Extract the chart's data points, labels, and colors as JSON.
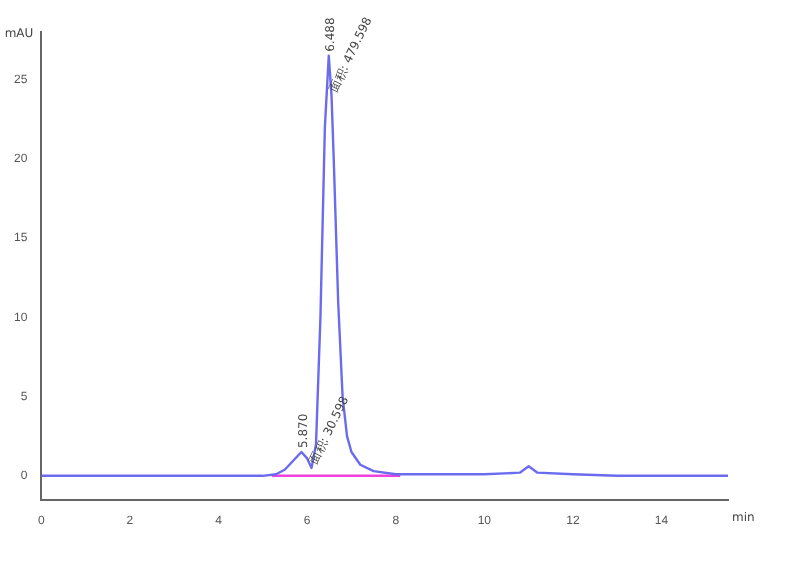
{
  "chart_data": {
    "type": "line",
    "xlabel": "min",
    "ylabel": "mAU",
    "xlim": [
      0,
      15.5
    ],
    "ylim": [
      -1.5,
      28
    ],
    "xticks": [
      0,
      2,
      4,
      6,
      8,
      10,
      12,
      14
    ],
    "yticks": [
      0,
      5,
      10,
      15,
      20,
      25
    ],
    "grid": false,
    "legend": false,
    "marker": "none",
    "series": [
      {
        "color": "#6b6bf0",
        "x": [
          0,
          1,
          2,
          3,
          4,
          5,
          5.3,
          5.5,
          5.7,
          5.87,
          6.0,
          6.1,
          6.2,
          6.3,
          6.4,
          6.488,
          6.55,
          6.6,
          6.7,
          6.8,
          6.9,
          7.0,
          7.2,
          7.5,
          8,
          9,
          10,
          10.8,
          11,
          11.2,
          12,
          13,
          14,
          15.5
        ],
        "values": [
          0,
          0,
          0,
          0,
          0,
          0,
          0.1,
          0.4,
          1,
          1.5,
          1.1,
          0.5,
          2,
          10,
          22,
          26.5,
          24,
          20,
          11,
          5,
          2.5,
          1.5,
          0.7,
          0.3,
          0.1,
          0.1,
          0.1,
          0.2,
          0.6,
          0.2,
          0.1,
          0,
          0,
          0
        ]
      },
      {
        "color": "#f040e0",
        "x": [
          5.2,
          8.1
        ],
        "values": [
          0,
          0
        ]
      }
    ],
    "annotations": [
      {
        "text": "5.870",
        "x": 5.87,
        "y": 1.5
      },
      {
        "text": "面积: 30.598",
        "x": 6.1,
        "y": 0.5
      },
      {
        "text": "6.488",
        "x": 6.488,
        "y": 26.5
      },
      {
        "text": "面积: 479.598",
        "x": 6.55,
        "y": 24
      }
    ]
  }
}
